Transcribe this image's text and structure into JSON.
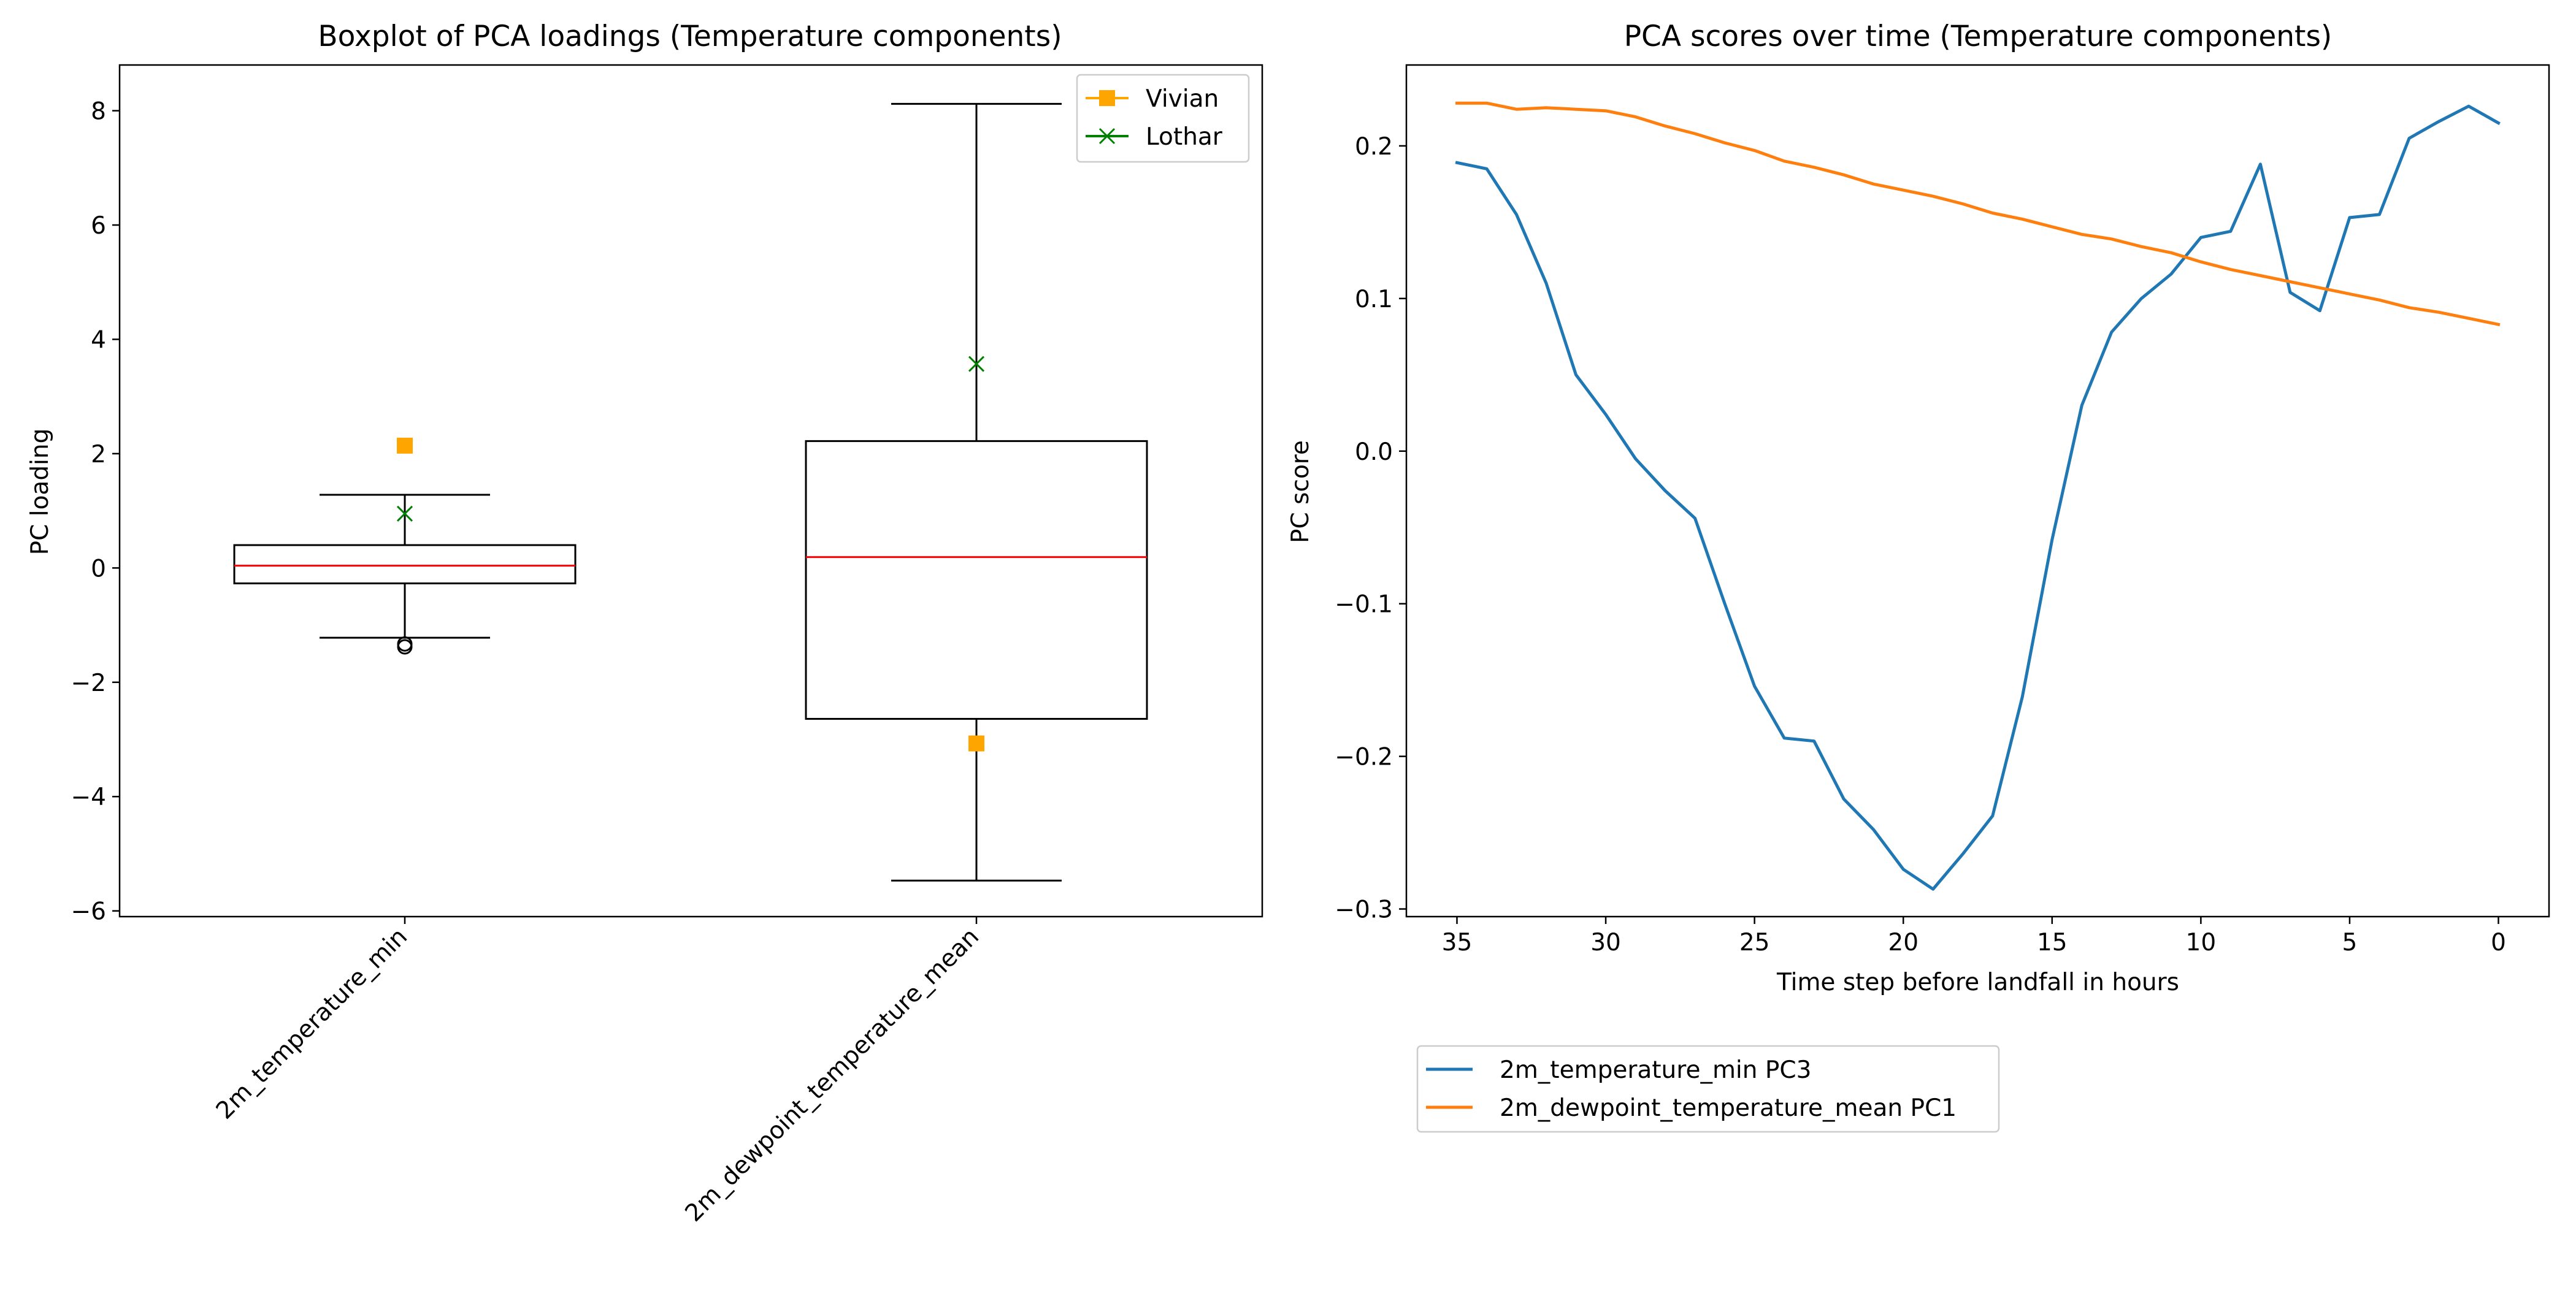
{
  "figure": {
    "left_chart": {
      "title": "Boxplot of PCA loadings (Temperature components)",
      "ylabel": "PC loading"
    },
    "right_chart": {
      "title": "PCA scores over time (Temperature components)",
      "xlabel": "Time step before landfall in hours",
      "ylabel": "PC score"
    }
  },
  "chart_data": [
    {
      "type": "box",
      "title": "Boxplot of PCA loadings (Temperature components)",
      "xlabel": "",
      "ylabel": "PC loading",
      "ylim": [
        -6.1,
        8.8
      ],
      "yticks": [
        -6,
        -4,
        -2,
        0,
        2,
        4,
        6,
        8
      ],
      "grid": false,
      "legend_position": "top-right",
      "colors": {
        "box": "#000000",
        "median": "#ff0000",
        "Vivian": "#ffa500",
        "Lothar": "#008000"
      },
      "categories": [
        "2m_temperature_min",
        "2m_dewpoint_temperature_mean"
      ],
      "boxes": [
        {
          "category": "2m_temperature_min",
          "whisker_low": -1.22,
          "q1": -0.27,
          "median": 0.04,
          "q3": 0.4,
          "whisker_high": 1.28,
          "fliers": [
            -1.33,
            -1.38
          ]
        },
        {
          "category": "2m_dewpoint_temperature_mean",
          "whisker_low": -5.47,
          "q1": -2.64,
          "median": 0.19,
          "q3": 2.22,
          "whisker_high": 8.12,
          "fliers": []
        }
      ],
      "series": [
        {
          "name": "Vivian",
          "marker": "square",
          "values": [
            2.14,
            -3.07
          ]
        },
        {
          "name": "Lothar",
          "marker": "x",
          "values": [
            0.95,
            3.57
          ]
        }
      ]
    },
    {
      "type": "line",
      "title": "PCA scores over time (Temperature components)",
      "xlabel": "Time step before landfall in hours",
      "ylabel": "PC score",
      "xlim": [
        36.7,
        -1.7
      ],
      "ylim": [
        -0.305,
        0.253
      ],
      "x_inverted": true,
      "xticks": [
        35,
        30,
        25,
        20,
        15,
        10,
        5,
        0
      ],
      "yticks": [
        -0.3,
        -0.2,
        -0.1,
        0.0,
        0.1,
        0.2
      ],
      "grid": false,
      "legend_position": "below",
      "x": [
        35,
        34,
        33,
        32,
        31,
        30,
        29,
        28,
        27,
        26,
        25,
        24,
        23,
        22,
        21,
        20,
        19,
        18,
        17,
        16,
        15,
        14,
        13,
        12,
        11,
        10,
        9,
        8,
        7,
        6,
        5,
        4,
        3,
        2,
        1,
        0
      ],
      "series": [
        {
          "name": "2m_temperature_min PC3",
          "color": "#1f77b4",
          "values": [
            0.189,
            0.185,
            0.155,
            0.11,
            0.05,
            0.024,
            -0.005,
            -0.026,
            -0.044,
            -0.1,
            -0.154,
            -0.188,
            -0.19,
            -0.228,
            -0.248,
            -0.274,
            -0.287,
            -0.264,
            -0.239,
            -0.161,
            -0.058,
            0.03,
            0.078,
            0.1,
            0.116,
            0.14,
            0.144,
            0.188,
            0.104,
            0.092,
            0.153,
            0.155,
            0.205,
            0.216,
            0.226,
            0.215
          ]
        },
        {
          "name": "2m_dewpoint_temperature_mean PC1",
          "color": "#ff7f0e",
          "values": [
            0.228,
            0.228,
            0.224,
            0.225,
            0.224,
            0.223,
            0.219,
            0.213,
            0.208,
            0.202,
            0.197,
            0.19,
            0.186,
            0.181,
            0.175,
            0.171,
            0.167,
            0.162,
            0.156,
            0.152,
            0.147,
            0.142,
            0.139,
            0.134,
            0.13,
            0.124,
            0.119,
            0.115,
            0.111,
            0.107,
            0.103,
            0.099,
            0.094,
            0.091,
            0.087,
            0.083
          ]
        }
      ]
    }
  ]
}
